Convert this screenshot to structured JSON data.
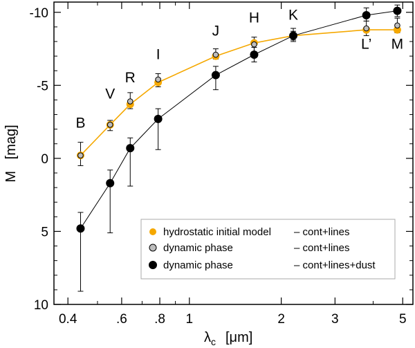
{
  "chart_data": {
    "type": "scatter",
    "xscale": "log",
    "xlim": [
      0.36,
      5.4
    ],
    "ylim": [
      10,
      -10.7
    ],
    "y_inverted": true,
    "xlabel": {
      "main": "λ",
      "sub": "c",
      "unit": "[μm]"
    },
    "ylabel": "M   [mag]",
    "xticks": [
      {
        "value": 0.4,
        "label": "0.4"
      },
      {
        "value": 0.6,
        "label": ".6"
      },
      {
        "value": 0.8,
        "label": ".8"
      },
      {
        "value": 1,
        "label": "1"
      },
      {
        "value": 2,
        "label": "2"
      },
      {
        "value": 3,
        "label": "3"
      },
      {
        "value": 5,
        "label": "5"
      }
    ],
    "yticks": [
      {
        "value": -10,
        "label": "-10"
      },
      {
        "value": -5,
        "label": "-5"
      },
      {
        "value": 0,
        "label": "0"
      },
      {
        "value": 5,
        "label": "5"
      },
      {
        "value": 10,
        "label": "10"
      }
    ],
    "band_labels": [
      {
        "label": "B",
        "x": 0.44,
        "y": -2.1
      },
      {
        "label": "V",
        "x": 0.55,
        "y": -4.1
      },
      {
        "label": "R",
        "x": 0.64,
        "y": -5.2
      },
      {
        "label": "I",
        "x": 0.79,
        "y": -6.8
      },
      {
        "label": "J",
        "x": 1.22,
        "y": -8.4
      },
      {
        "label": "H",
        "x": 1.63,
        "y": -9.3
      },
      {
        "label": "K",
        "x": 2.19,
        "y": -9.5
      },
      {
        "label": "L’",
        "x": 3.8,
        "y": -7.5
      },
      {
        "label": "M",
        "x": 4.8,
        "y": -7.5
      }
    ],
    "series": [
      {
        "name": "hydrostatic initial model",
        "style": "orange-line",
        "color": "#f5a800",
        "x": [
          0.44,
          0.55,
          0.64,
          0.79,
          1.22,
          1.63,
          2.19,
          3.8,
          4.8
        ],
        "y": [
          -0.2,
          -2.3,
          -3.7,
          -5.2,
          -7.0,
          -7.9,
          -8.4,
          -8.8,
          -8.8
        ]
      },
      {
        "name": "dynamic phase",
        "style": "gray-points",
        "color": "#bdbdbd",
        "x": [
          0.44,
          0.55,
          0.64,
          0.79,
          1.22,
          1.63,
          2.19,
          3.8,
          4.8
        ],
        "y": [
          -0.2,
          -2.3,
          -3.9,
          -5.4,
          -7.1,
          -7.8,
          -8.4,
          -8.9,
          -9.1
        ],
        "err_low": [
          -1.1,
          -2.6,
          -4.5,
          -5.8,
          -7.5,
          -8.3,
          -8.7,
          -9.4,
          -9.6
        ],
        "err_high": [
          0.5,
          -1.9,
          -3.4,
          -4.9,
          -6.8,
          -7.3,
          -8.1,
          -8.4,
          -8.6
        ]
      },
      {
        "name": "dynamic phase",
        "style": "black-line",
        "color": "#000000",
        "x": [
          0.44,
          0.55,
          0.64,
          0.79,
          1.22,
          1.63,
          2.19,
          3.8,
          4.8
        ],
        "y": [
          4.8,
          1.7,
          -0.7,
          -2.7,
          -5.7,
          -7.1,
          -8.4,
          -9.8,
          -10.1
        ],
        "err_low": [
          3.7,
          0.8,
          -1.4,
          -3.4,
          -6.3,
          -7.6,
          -8.9,
          -10.3,
          -10.5
        ],
        "err_high": [
          9.1,
          5.1,
          1.9,
          -0.6,
          -4.7,
          -6.6,
          -8.0,
          -9.4,
          -9.7
        ]
      }
    ],
    "legend": {
      "placement": "bottom-right",
      "entries": [
        {
          "label": "hydrostatic initial model",
          "suffix": "– cont+lines",
          "marker": "orange-dot"
        },
        {
          "label": "dynamic phase",
          "suffix": "– cont+lines",
          "marker": "gray-dot"
        },
        {
          "label": "dynamic phase",
          "suffix": "– cont+lines+dust",
          "marker": "black-dot"
        }
      ]
    }
  }
}
